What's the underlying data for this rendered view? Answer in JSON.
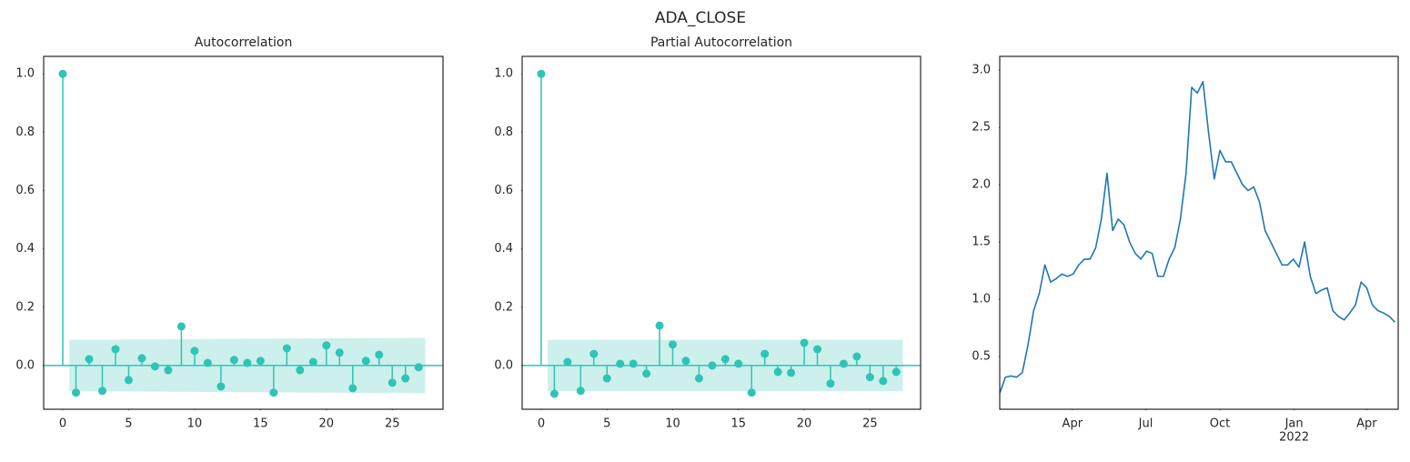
{
  "chart_data": [
    {
      "type": "stem",
      "title": "Autocorrelation",
      "color": "#2ec4b6",
      "band_color": "#cdf0ec",
      "x": [
        0,
        1,
        2,
        3,
        4,
        5,
        6,
        7,
        8,
        9,
        10,
        11,
        12,
        13,
        14,
        15,
        16,
        17,
        18,
        19,
        20,
        21,
        22,
        23,
        24,
        25,
        26,
        27
      ],
      "values": [
        1.0,
        -0.093,
        0.022,
        -0.087,
        0.056,
        -0.05,
        0.025,
        -0.003,
        -0.016,
        0.134,
        0.05,
        0.009,
        -0.072,
        0.019,
        0.009,
        0.016,
        -0.093,
        0.059,
        -0.016,
        0.012,
        0.069,
        0.044,
        -0.078,
        0.016,
        0.037,
        -0.059,
        -0.044,
        -0.006
      ],
      "confint": {
        "x": [
          0.5,
          27.5
        ],
        "upper": [
          0.088,
          0.095
        ],
        "lower": [
          -0.088,
          -0.095
        ]
      },
      "xlim": [
        -1.45,
        28.85
      ],
      "xticks": [
        0,
        5,
        10,
        15,
        20,
        25
      ],
      "ylim": [
        -0.15,
        1.06
      ],
      "yticks": [
        {
          "value": 0,
          "label": "0.0"
        },
        0.2,
        0.4,
        0.6,
        0.8,
        {
          "value": 1,
          "label": "1.0"
        }
      ]
    },
    {
      "type": "stem",
      "title": "Partial Autocorrelation",
      "color": "#2ec4b6",
      "band_color": "#cdf0ec",
      "x": [
        0,
        1,
        2,
        3,
        4,
        5,
        6,
        7,
        8,
        9,
        10,
        11,
        12,
        13,
        14,
        15,
        16,
        17,
        18,
        19,
        20,
        21,
        22,
        23,
        24,
        25,
        26,
        27
      ],
      "values": [
        1.0,
        -0.097,
        0.012,
        -0.087,
        0.04,
        -0.044,
        0.006,
        0.006,
        -0.028,
        0.137,
        0.072,
        0.016,
        -0.044,
        0.0,
        0.022,
        0.006,
        -0.093,
        0.04,
        -0.022,
        -0.025,
        0.078,
        0.056,
        -0.062,
        0.006,
        0.031,
        -0.04,
        -0.053,
        -0.022
      ],
      "confint": {
        "x": [
          0.5,
          27.5
        ],
        "upper": [
          0.088,
          0.088
        ],
        "lower": [
          -0.088,
          -0.088
        ]
      },
      "xlim": [
        -1.45,
        28.85
      ],
      "xticks": [
        0,
        5,
        10,
        15,
        20,
        25
      ],
      "ylim": [
        -0.15,
        1.06
      ],
      "yticks": [
        {
          "value": 0,
          "label": "0.0"
        },
        0.2,
        0.4,
        0.6,
        0.8,
        {
          "value": 1,
          "label": "1.0"
        }
      ]
    },
    {
      "type": "line",
      "suptitle": "ADA_CLOSE",
      "color": "#1f77b4",
      "x": [
        "2021-01-01",
        "2021-01-08",
        "2021-01-15",
        "2021-01-22",
        "2021-01-29",
        "2021-02-05",
        "2021-02-12",
        "2021-02-19",
        "2021-02-26",
        "2021-03-05",
        "2021-03-12",
        "2021-03-19",
        "2021-03-26",
        "2021-04-02",
        "2021-04-09",
        "2021-04-16",
        "2021-04-23",
        "2021-04-30",
        "2021-05-07",
        "2021-05-14",
        "2021-05-21",
        "2021-05-28",
        "2021-06-04",
        "2021-06-11",
        "2021-06-18",
        "2021-06-25",
        "2021-07-02",
        "2021-07-09",
        "2021-07-16",
        "2021-07-23",
        "2021-07-30",
        "2021-08-06",
        "2021-08-13",
        "2021-08-20",
        "2021-08-27",
        "2021-09-03",
        "2021-09-10",
        "2021-09-17",
        "2021-09-24",
        "2021-10-01",
        "2021-10-08",
        "2021-10-15",
        "2021-10-22",
        "2021-10-29",
        "2021-11-05",
        "2021-11-12",
        "2021-11-19",
        "2021-11-26",
        "2021-12-03",
        "2021-12-10",
        "2021-12-17",
        "2021-12-24",
        "2021-12-31",
        "2022-01-07",
        "2022-01-14",
        "2022-01-21",
        "2022-01-28",
        "2022-02-04",
        "2022-02-11",
        "2022-02-18",
        "2022-02-25",
        "2022-03-04",
        "2022-03-11",
        "2022-03-18",
        "2022-03-25",
        "2022-04-01",
        "2022-04-08",
        "2022-04-15",
        "2022-04-22",
        "2022-04-29",
        "2022-05-06"
      ],
      "values": [
        0.18,
        0.32,
        0.33,
        0.32,
        0.36,
        0.6,
        0.9,
        1.05,
        1.3,
        1.15,
        1.18,
        1.22,
        1.2,
        1.22,
        1.3,
        1.35,
        1.35,
        1.45,
        1.7,
        2.1,
        1.6,
        1.7,
        1.65,
        1.5,
        1.4,
        1.35,
        1.42,
        1.4,
        1.2,
        1.2,
        1.35,
        1.45,
        1.7,
        2.1,
        2.85,
        2.8,
        2.9,
        2.45,
        2.05,
        2.3,
        2.2,
        2.2,
        2.1,
        2.0,
        1.95,
        1.98,
        1.85,
        1.6,
        1.5,
        1.4,
        1.3,
        1.3,
        1.35,
        1.28,
        1.5,
        1.2,
        1.05,
        1.08,
        1.1,
        0.9,
        0.85,
        0.82,
        0.88,
        0.95,
        1.15,
        1.1,
        0.95,
        0.9,
        0.88,
        0.85,
        0.8
      ],
      "xlim": [
        "2021-01-01",
        "2022-05-10"
      ],
      "xticks": [
        {
          "value": "2021-04-01",
          "label": "Apr"
        },
        {
          "value": "2021-07-01",
          "label": "Jul"
        },
        {
          "value": "2021-10-01",
          "label": "Oct"
        },
        {
          "value": "2022-01-01",
          "label": "Jan",
          "sublabel": "2022"
        },
        {
          "value": "2022-04-01",
          "label": "Apr"
        }
      ],
      "ylim": [
        0.04,
        3.12
      ],
      "yticks": [
        0.5,
        {
          "value": 1,
          "label": "1.0"
        },
        1.5,
        {
          "value": 2,
          "label": "2.0"
        },
        2.5,
        {
          "value": 3,
          "label": "3.0"
        }
      ]
    }
  ]
}
